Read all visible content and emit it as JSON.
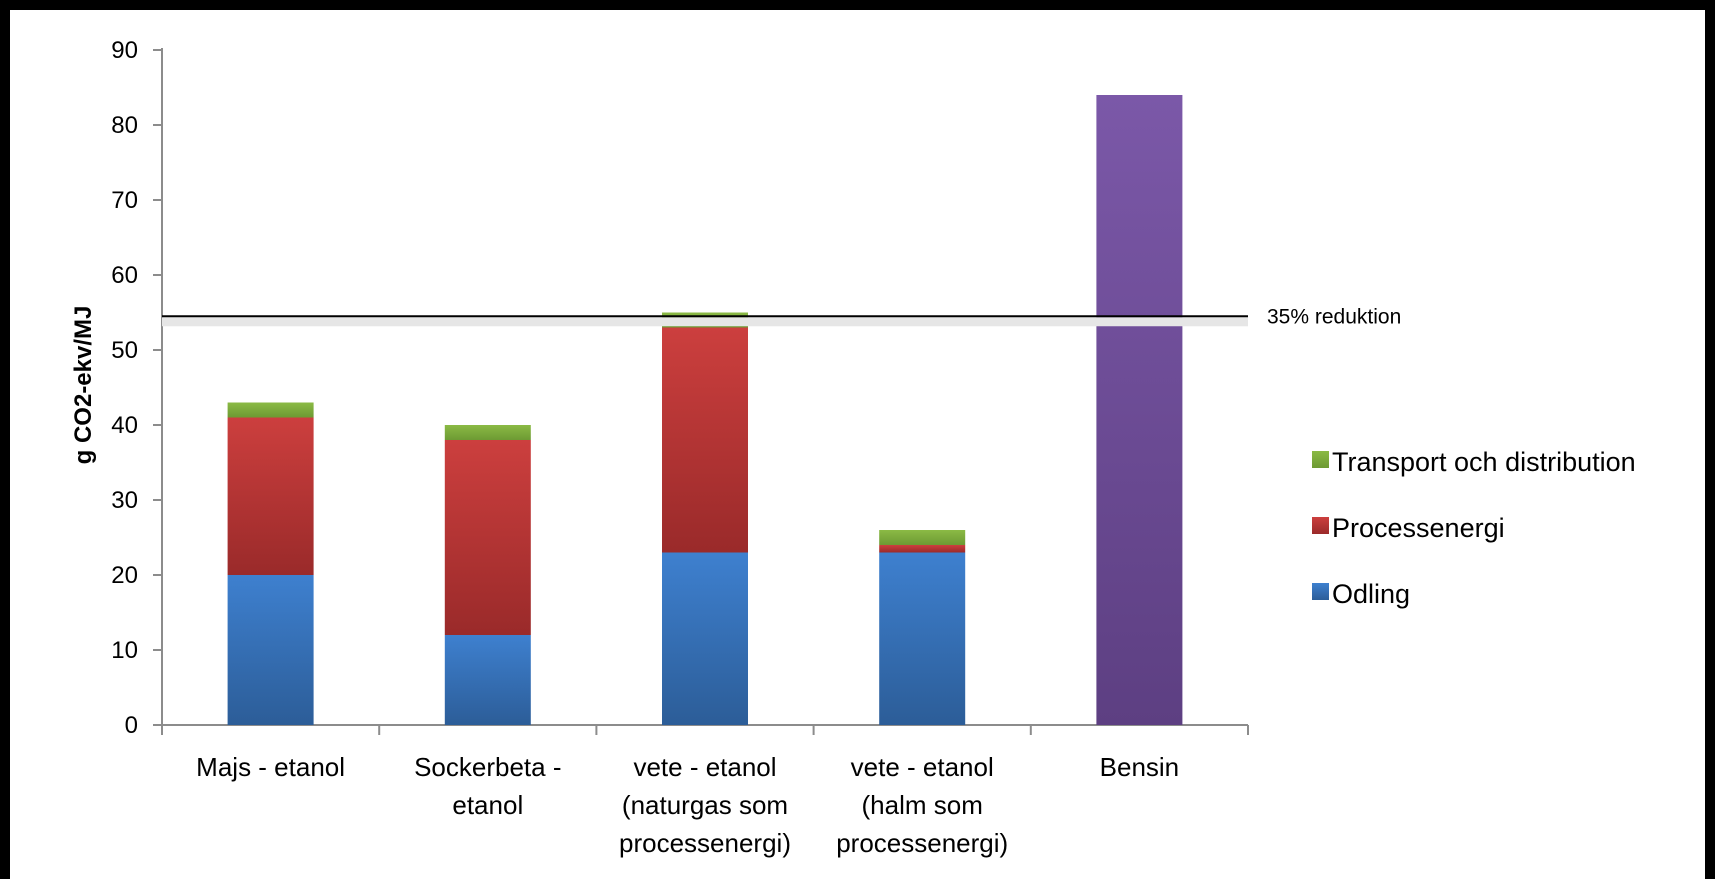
{
  "chart_data": {
    "type": "bar",
    "stacked": true,
    "ylabel": "g CO2-ekv/MJ",
    "ylim": [
      0,
      90
    ],
    "yticks": [
      0,
      10,
      20,
      30,
      40,
      50,
      60,
      70,
      80,
      90
    ],
    "categories": [
      [
        "Majs - etanol"
      ],
      [
        "Sockerbeta -",
        "etanol"
      ],
      [
        "vete - etanol",
        "(naturgas som",
        "processenergi)"
      ],
      [
        "vete - etanol",
        "(halm som",
        "processenergi)"
      ],
      [
        "Bensin"
      ]
    ],
    "series": [
      {
        "name": "Odling",
        "color": "#3a78c3",
        "values": [
          20,
          12,
          23,
          23,
          null
        ]
      },
      {
        "name": "Processenergi",
        "color": "#c0393b",
        "values": [
          21,
          26,
          30,
          1,
          null
        ]
      },
      {
        "name": "Transport och distribution",
        "color": "#7fab3c",
        "values": [
          2,
          2,
          2,
          2,
          null
        ]
      },
      {
        "name": "",
        "color": "#7355a0",
        "values": [
          null,
          null,
          null,
          null,
          84
        ]
      }
    ],
    "legend": {
      "placement": "right",
      "order": [
        "Transport och distribution",
        "Processenergi",
        "Odling"
      ]
    },
    "reference_line": {
      "value": 54.5,
      "label": "35% reduktion"
    }
  }
}
